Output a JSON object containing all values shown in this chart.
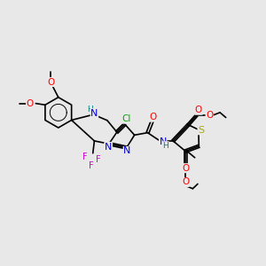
{
  "background_color": "#e8e8e8",
  "fig_size": [
    3.0,
    3.0
  ],
  "dpi": 100,
  "xlim": [
    0,
    9
  ],
  "ylim": [
    3.0,
    8.5
  ],
  "colors": {
    "bond": "black",
    "N": "#0000dd",
    "H_teal": "#008080",
    "O": "#ff0000",
    "S": "#aaaa00",
    "Cl": "#00aa00",
    "F": "#cc00cc",
    "lw": 1.2
  }
}
